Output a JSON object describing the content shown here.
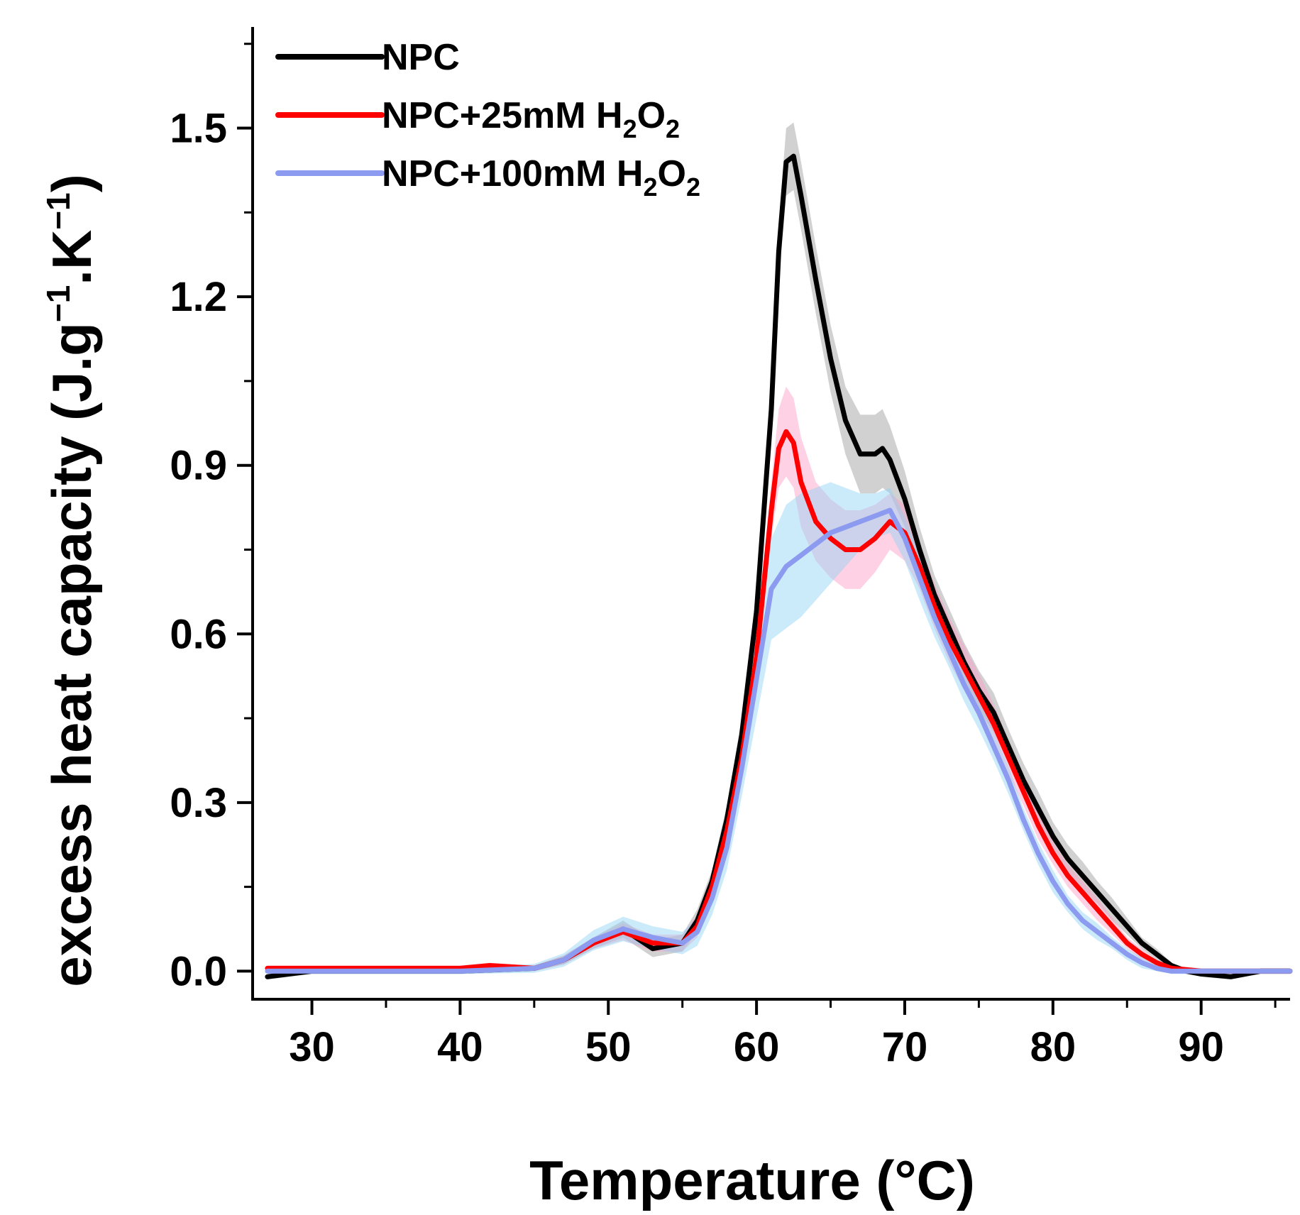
{
  "chart_data": {
    "type": "line",
    "title": "",
    "xlabel": "Temperature (°C)",
    "ylabel": {
      "main": "excess heat capacity (J.g",
      "sup1": "−1",
      "mid": ".K",
      "sup2": "−1",
      "end": ")"
    },
    "xlim": [
      26,
      96
    ],
    "ylim": [
      -0.05,
      1.68
    ],
    "xticks": [
      30,
      40,
      50,
      60,
      70,
      80,
      90
    ],
    "xtick_labels": [
      "30",
      "40",
      "50",
      "60",
      "70",
      "80",
      "90"
    ],
    "xminor": [
      35,
      45,
      55,
      65,
      75,
      85,
      95
    ],
    "yticks": [
      0.0,
      0.3,
      0.6,
      0.9,
      1.2,
      1.5
    ],
    "ytick_labels": [
      "0.0",
      "0.3",
      "0.6",
      "0.9",
      "1.2",
      "1.5"
    ],
    "yminor": [
      0.15,
      0.45,
      0.75,
      1.05,
      1.35,
      1.65
    ],
    "legend_position": "top-left",
    "series": [
      {
        "name": "NPC",
        "label": {
          "base": "NPC",
          "sub1": "",
          "mid": "",
          "sub2": ""
        },
        "color": "#000000",
        "band_color": "#9a9a9a",
        "x": [
          27,
          30,
          35,
          40,
          45,
          47,
          49,
          51,
          53,
          55,
          56,
          57,
          58,
          59,
          60,
          61,
          61.5,
          62,
          62.5,
          63,
          64,
          65,
          66,
          67,
          68,
          68.5,
          69,
          70,
          71,
          72,
          73,
          74,
          75,
          76,
          77,
          78,
          79,
          80,
          81,
          82,
          83,
          84,
          85,
          86,
          87,
          88,
          89,
          90,
          92,
          94,
          96
        ],
        "y": [
          -0.01,
          0.0,
          0.0,
          0.0,
          0.005,
          0.02,
          0.05,
          0.075,
          0.04,
          0.05,
          0.09,
          0.16,
          0.27,
          0.42,
          0.64,
          1.0,
          1.28,
          1.44,
          1.45,
          1.38,
          1.23,
          1.09,
          0.98,
          0.92,
          0.92,
          0.93,
          0.91,
          0.84,
          0.75,
          0.67,
          0.61,
          0.55,
          0.5,
          0.46,
          0.4,
          0.34,
          0.29,
          0.24,
          0.2,
          0.17,
          0.14,
          0.11,
          0.08,
          0.05,
          0.03,
          0.01,
          0.0,
          -0.005,
          -0.01,
          0.0,
          0.0
        ],
        "err": [
          0.005,
          0.005,
          0.005,
          0.005,
          0.005,
          0.008,
          0.01,
          0.015,
          0.015,
          0.015,
          0.02,
          0.02,
          0.025,
          0.03,
          0.035,
          0.04,
          0.05,
          0.06,
          0.06,
          0.06,
          0.06,
          0.06,
          0.06,
          0.07,
          0.07,
          0.07,
          0.06,
          0.05,
          0.04,
          0.035,
          0.035,
          0.035,
          0.035,
          0.035,
          0.03,
          0.03,
          0.03,
          0.025,
          0.025,
          0.025,
          0.02,
          0.02,
          0.015,
          0.01,
          0.01,
          0.005,
          0.005,
          0.005,
          0.005,
          0.005,
          0.005
        ]
      },
      {
        "name": "NPC+25mM H2O2",
        "label": {
          "base": "NPC+25mM H",
          "sub1": "2",
          "mid": "O",
          "sub2": "2"
        },
        "color": "#ff0000",
        "band_color": "#ff9ac4",
        "x": [
          27,
          30,
          35,
          40,
          42,
          45,
          47,
          49,
          51,
          53,
          55,
          56,
          57,
          58,
          59,
          60,
          61,
          61.5,
          62,
          62.5,
          63,
          64,
          65,
          66,
          67,
          68,
          69,
          70,
          71,
          72,
          73,
          74,
          75,
          76,
          77,
          78,
          79,
          80,
          81,
          82,
          83,
          84,
          85,
          86,
          87,
          88,
          90,
          92,
          94,
          96
        ],
        "y": [
          0.005,
          0.005,
          0.005,
          0.005,
          0.01,
          0.005,
          0.02,
          0.05,
          0.07,
          0.05,
          0.05,
          0.08,
          0.15,
          0.25,
          0.38,
          0.56,
          0.82,
          0.93,
          0.96,
          0.94,
          0.87,
          0.8,
          0.77,
          0.75,
          0.75,
          0.77,
          0.8,
          0.78,
          0.72,
          0.65,
          0.59,
          0.54,
          0.49,
          0.44,
          0.38,
          0.32,
          0.26,
          0.21,
          0.17,
          0.14,
          0.11,
          0.08,
          0.05,
          0.03,
          0.015,
          0.005,
          0.0,
          0.0,
          0.0,
          0.0
        ],
        "err": [
          0.005,
          0.005,
          0.005,
          0.005,
          0.005,
          0.005,
          0.008,
          0.01,
          0.015,
          0.015,
          0.015,
          0.02,
          0.025,
          0.03,
          0.035,
          0.04,
          0.05,
          0.07,
          0.08,
          0.08,
          0.08,
          0.07,
          0.07,
          0.07,
          0.07,
          0.06,
          0.05,
          0.05,
          0.04,
          0.04,
          0.04,
          0.04,
          0.04,
          0.035,
          0.03,
          0.025,
          0.025,
          0.02,
          0.02,
          0.02,
          0.02,
          0.015,
          0.01,
          0.01,
          0.005,
          0.005,
          0.005,
          0.005,
          0.005,
          0.005
        ]
      },
      {
        "name": "NPC+100mM H2O2",
        "label": {
          "base": "NPC+100mM H",
          "sub1": "2",
          "mid": "O",
          "sub2": "2"
        },
        "color": "#8c9bf0",
        "band_color": "#8fd3f3",
        "x": [
          27,
          30,
          35,
          40,
          45,
          47,
          49,
          51,
          53,
          55,
          56,
          57,
          58,
          59,
          60,
          61,
          62,
          63,
          64,
          65,
          66,
          67,
          68,
          69,
          70,
          71,
          72,
          73,
          74,
          75,
          76,
          77,
          78,
          79,
          80,
          81,
          82,
          83,
          84,
          85,
          86,
          87,
          88,
          90,
          92,
          94,
          96
        ],
        "y": [
          0.0,
          0.0,
          0.0,
          0.0,
          0.005,
          0.02,
          0.055,
          0.075,
          0.06,
          0.05,
          0.07,
          0.13,
          0.22,
          0.36,
          0.52,
          0.68,
          0.72,
          0.74,
          0.76,
          0.78,
          0.79,
          0.8,
          0.81,
          0.82,
          0.77,
          0.7,
          0.63,
          0.57,
          0.51,
          0.46,
          0.4,
          0.34,
          0.27,
          0.21,
          0.16,
          0.12,
          0.09,
          0.07,
          0.05,
          0.03,
          0.015,
          0.005,
          0.0,
          0.0,
          0.0,
          0.0,
          0.0
        ],
        "err": [
          0.005,
          0.005,
          0.005,
          0.005,
          0.008,
          0.012,
          0.018,
          0.022,
          0.02,
          0.02,
          0.025,
          0.03,
          0.04,
          0.05,
          0.07,
          0.09,
          0.11,
          0.11,
          0.1,
          0.09,
          0.07,
          0.05,
          0.04,
          0.04,
          0.04,
          0.04,
          0.035,
          0.03,
          0.03,
          0.03,
          0.025,
          0.025,
          0.02,
          0.02,
          0.02,
          0.015,
          0.015,
          0.015,
          0.01,
          0.01,
          0.01,
          0.005,
          0.005,
          0.005,
          0.005,
          0.005,
          0.005
        ]
      }
    ]
  }
}
